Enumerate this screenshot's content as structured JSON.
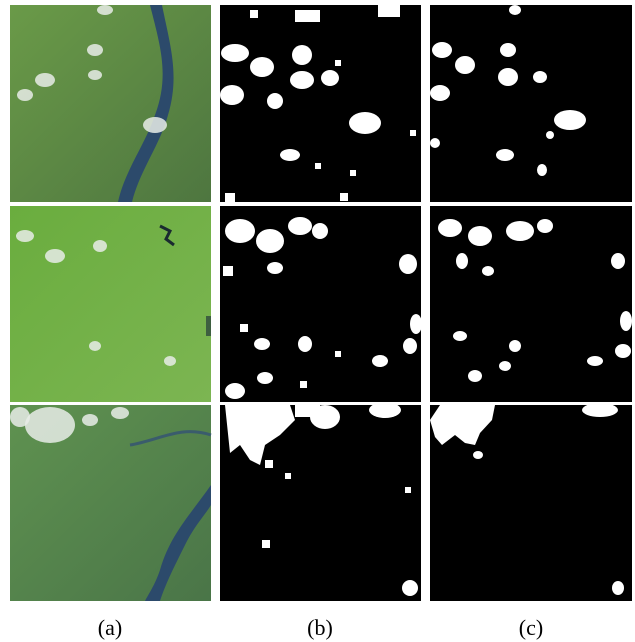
{
  "figure": {
    "labels": [
      "(a)",
      "(b)",
      "(c)"
    ]
  }
}
